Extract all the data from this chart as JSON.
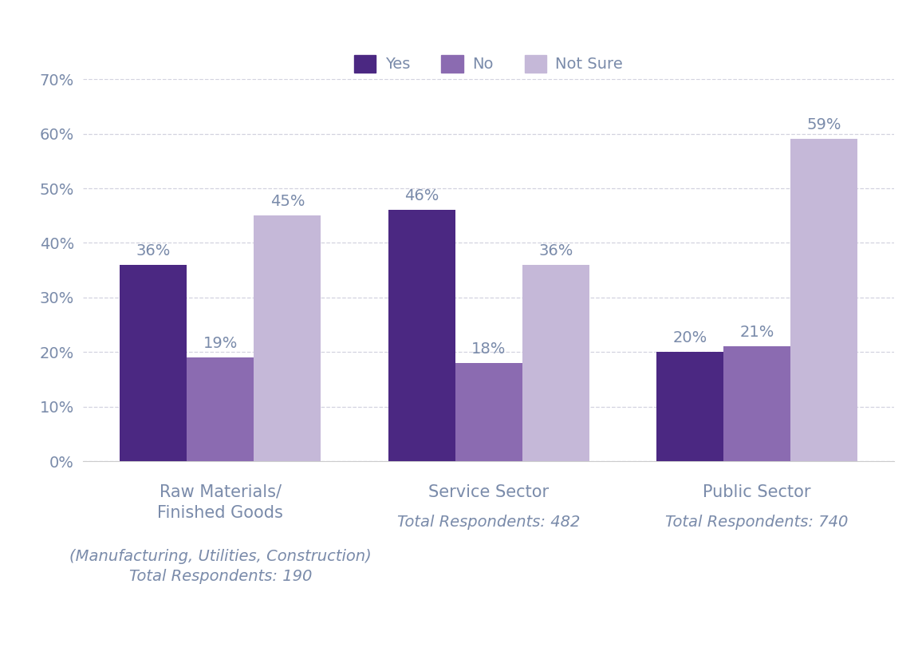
{
  "series": {
    "Yes": [
      36,
      46,
      20
    ],
    "No": [
      19,
      18,
      21
    ],
    "Not Sure": [
      45,
      36,
      59
    ]
  },
  "colors": {
    "Yes": "#4B2882",
    "No": "#8B6BB1",
    "Not Sure": "#C5B8D8"
  },
  "ylim": [
    0,
    70
  ],
  "yticks": [
    0,
    10,
    20,
    30,
    40,
    50,
    60,
    70
  ],
  "legend_labels": [
    "Yes",
    "No",
    "Not Sure"
  ],
  "bar_width": 0.25,
  "background_color": "#ffffff",
  "text_color": "#7A8BAA",
  "grid_color": "#C8C8D8",
  "label_fontsize": 15,
  "tick_fontsize": 14,
  "legend_fontsize": 14,
  "value_fontsize": 14,
  "cat_main": [
    "Raw Materials/\nFinished Goods",
    "Service Sector",
    "Public Sector"
  ],
  "cat_sub": [
    "(Manufacturing, Utilities, Construction)\nTotal Respondents: 190",
    "Total Respondents: 482",
    "Total Respondents: 740"
  ]
}
